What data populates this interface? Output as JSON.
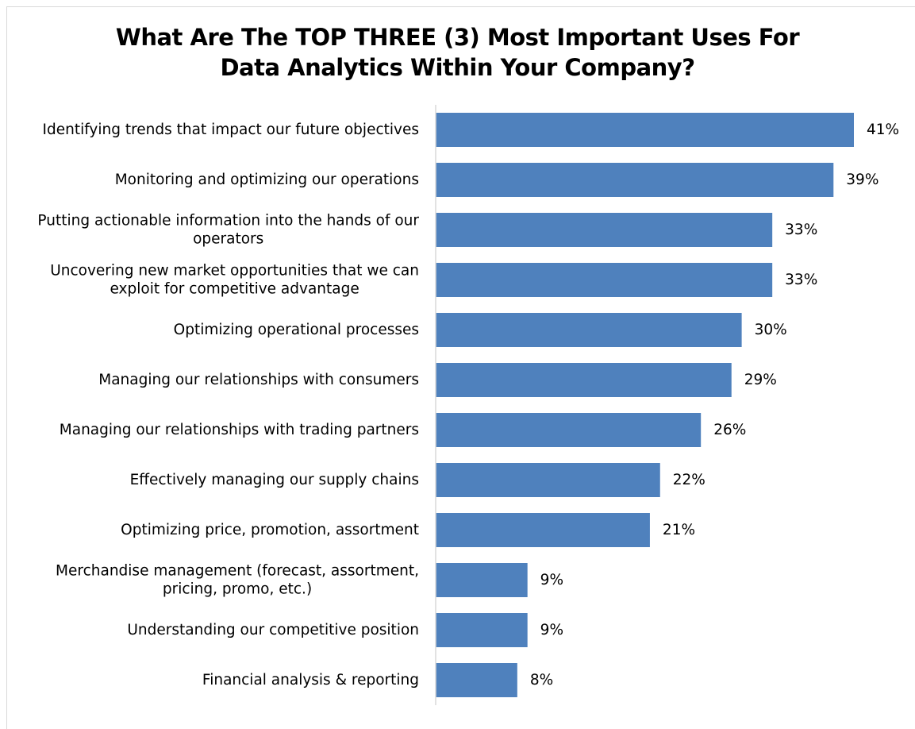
{
  "chart_data": {
    "type": "bar",
    "orientation": "horizontal",
    "title_lines": [
      "What  Are The TOP THREE (3) Most Important Uses For",
      "Data Analytics Within Your Company?"
    ],
    "categories": [
      [
        "Identifying trends that impact our future objectives"
      ],
      [
        "Monitoring and optimizing our operations"
      ],
      [
        "Putting actionable information into the hands of our",
        "operators"
      ],
      [
        "Uncovering new market opportunities that we can",
        "exploit for competitive advantage"
      ],
      [
        "Optimizing operational processes"
      ],
      [
        "Managing our relationships with consumers"
      ],
      [
        "Managing our relationships with trading partners"
      ],
      [
        "Effectively managing our supply chains"
      ],
      [
        "Optimizing price, promotion, assortment"
      ],
      [
        "Merchandise management (forecast, assortment,",
        "pricing, promo, etc.)"
      ],
      [
        "Understanding our competitive position"
      ],
      [
        "Financial analysis & reporting"
      ]
    ],
    "values": [
      41,
      39,
      33,
      33,
      30,
      29,
      26,
      22,
      21,
      9,
      9,
      8
    ],
    "value_labels": [
      "41%",
      "39%",
      "33%",
      "33%",
      "30%",
      "29%",
      "26%",
      "22%",
      "21%",
      "9%",
      "9%",
      "8%"
    ],
    "xlim": [
      0,
      45
    ],
    "grid": false,
    "legend": "none",
    "bar_color": "#4f81bd",
    "axis_color": "#d9d9d9"
  }
}
